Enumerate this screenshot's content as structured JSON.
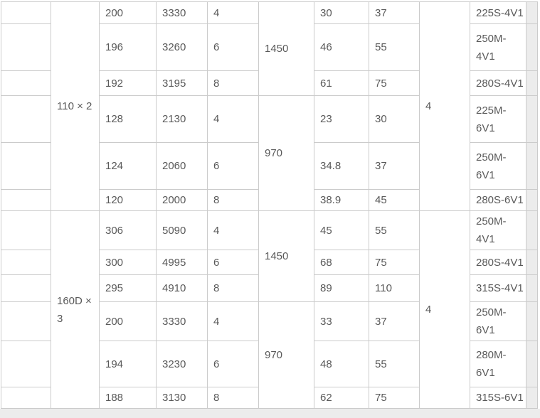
{
  "colors": {
    "border": "#cbcbcb",
    "text": "#595959",
    "sliver_background": "#ececec",
    "bottom_strip_background": "#ececec"
  },
  "table": {
    "groups": [
      {
        "label": "110 × 2",
        "poles": "4",
        "sections": [
          {
            "rpm": "1450",
            "rows": [
              {
                "c1": "200",
                "c2": "3330",
                "c3": "4",
                "c4": "30",
                "c5": "37",
                "model": "225S-4V1"
              },
              {
                "c1": "196",
                "c2": "3260",
                "c3": "6",
                "c4": "46",
                "c5": "55",
                "model": "250M-\n4V1"
              },
              {
                "c1": "192",
                "c2": "3195",
                "c3": "8",
                "c4": "61",
                "c5": "75",
                "model": "280S-4V1"
              }
            ]
          },
          {
            "rpm": "970",
            "rows": [
              {
                "c1": "128",
                "c2": "2130",
                "c3": "4",
                "c4": "23",
                "c5": "30",
                "model": "225M-\n6V1"
              },
              {
                "c1": "124",
                "c2": "2060",
                "c3": "6",
                "c4": "34.8",
                "c5": "37",
                "model": "250M-\n6V1"
              },
              {
                "c1": "120",
                "c2": "2000",
                "c3": "8",
                "c4": "38.9",
                "c5": "45",
                "model": "280S-6V1"
              }
            ]
          }
        ]
      },
      {
        "label": "160D ×\n3",
        "poles": "4",
        "sections": [
          {
            "rpm": "1450",
            "rows": [
              {
                "c1": "306",
                "c2": "5090",
                "c3": "4",
                "c4": "45",
                "c5": "55",
                "model": "250M-\n4V1"
              },
              {
                "c1": "300",
                "c2": "4995",
                "c3": "6",
                "c4": "68",
                "c5": "75",
                "model": "280S-4V1"
              },
              {
                "c1": "295",
                "c2": "4910",
                "c3": "8",
                "c4": "89",
                "c5": "110",
                "model": "315S-4V1"
              }
            ]
          },
          {
            "rpm": "970",
            "rows": [
              {
                "c1": "200",
                "c2": "3330",
                "c3": "4",
                "c4": "33",
                "c5": "37",
                "model": "250M-\n6V1"
              },
              {
                "c1": "194",
                "c2": "3230",
                "c3": "6",
                "c4": "48",
                "c5": "55",
                "model": "280M-\n6V1"
              },
              {
                "c1": "188",
                "c2": "3130",
                "c3": "8",
                "c4": "62",
                "c5": "75",
                "model": "315S-6V1"
              }
            ]
          }
        ]
      }
    ]
  }
}
